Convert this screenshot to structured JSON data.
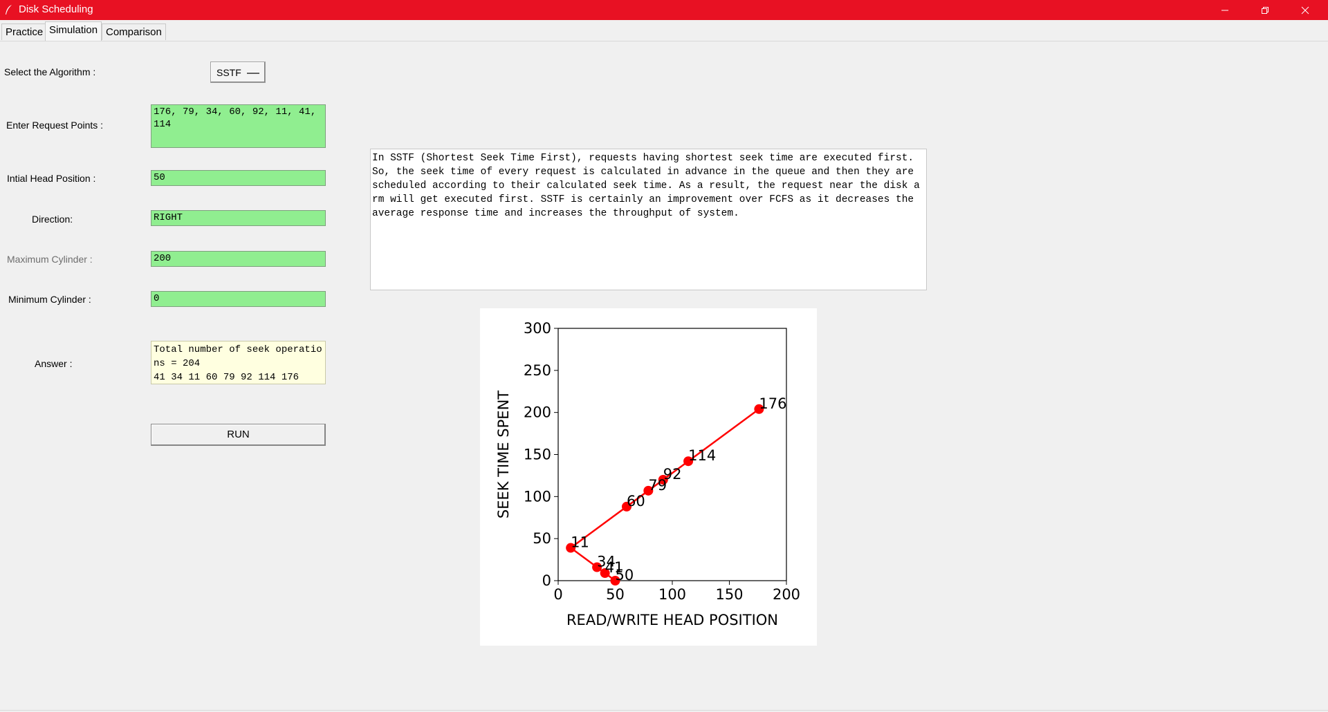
{
  "window": {
    "title": "Disk Scheduling"
  },
  "tabs": [
    {
      "label": "Practice"
    },
    {
      "label": "Simulation"
    },
    {
      "label": "Comparison"
    }
  ],
  "form": {
    "algorithm_label": "Select the Algorithm :",
    "algorithm_value": "SSTF",
    "request_label": "Enter Request Points :",
    "request_value": "176, 79, 34, 60, 92, 11, 41, 114",
    "head_label": "Intial Head Position :",
    "head_value": "50",
    "direction_label": "Direction:",
    "direction_value": "RIGHT",
    "max_label": "Maximum Cylinder :",
    "max_value": "200",
    "min_label": "Minimum Cylinder :",
    "min_value": "0",
    "answer_label": "Answer :",
    "answer_value": "Total number of seek operations = 204\n41 34 11 60 79 92 114 176",
    "run_label": "RUN"
  },
  "description": "In SSTF (Shortest Seek Time First), requests having shortest seek time are executed first. So, the seek time of every request is calculated in advance in the queue and then they are scheduled according to their calculated seek time. As a result, the request near the disk arm will get executed first. SSTF is certainly an improvement over FCFS as it decreases the average response time and increases the throughput of system.",
  "colors": {
    "titlebar": "#e81123",
    "field_bg": "#90ee90",
    "answer_bg": "#ffffe0",
    "series": "#ff0000"
  },
  "chart_data": {
    "type": "line",
    "title": "",
    "xlabel": "READ/WRITE HEAD POSITION",
    "ylabel": "SEEK TIME SPENT",
    "xlim": [
      0,
      200
    ],
    "ylim": [
      0,
      300
    ],
    "xticks": [
      0,
      50,
      100,
      150,
      200
    ],
    "yticks": [
      0,
      50,
      100,
      150,
      200,
      250,
      300
    ],
    "grid": false,
    "series": [
      {
        "x": [
          50,
          41,
          34,
          11,
          60,
          79,
          92,
          114,
          176
        ],
        "y": [
          0,
          9,
          16,
          39,
          88,
          107,
          120,
          142,
          204
        ],
        "labels": [
          "50",
          "41",
          "34",
          "11",
          "60",
          "79",
          "92",
          "114",
          "176"
        ]
      }
    ]
  }
}
